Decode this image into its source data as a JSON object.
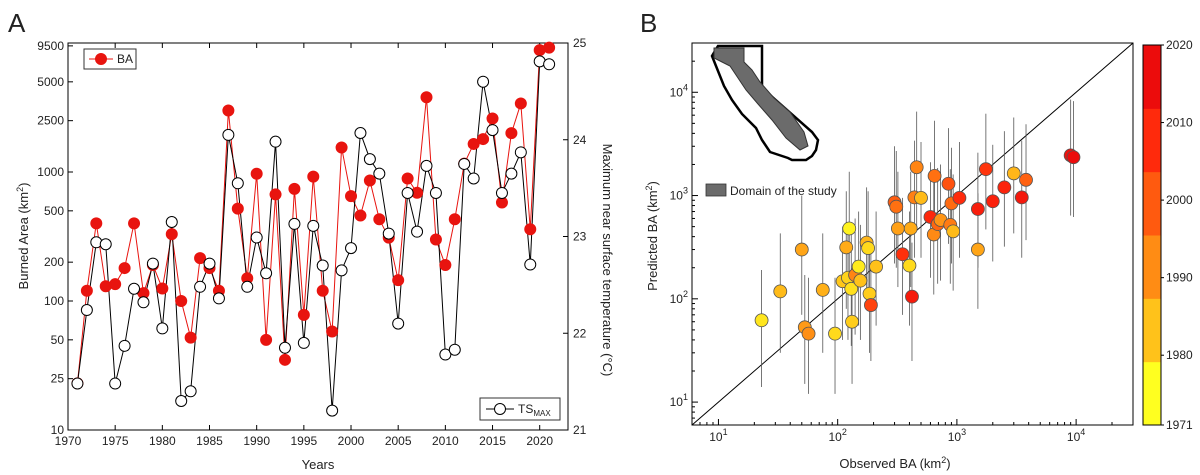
{
  "panel_a": {
    "letter": "A",
    "xlabel": "Years",
    "ylabel_left": "Burned Area (km",
    "ylabel_left_sup": "2",
    "ylabel_left_end": ")",
    "ylabel_right": "Maximum near surface temperature (°C)",
    "legend_ba": "BA",
    "legend_ts": "TS",
    "legend_ts_sub": "MAX",
    "ba_color": "#e8140f",
    "ts_color": "#000000"
  },
  "panel_b": {
    "letter": "B",
    "xlabel": "Observed BA (km",
    "xlabel_sup": "2",
    "xlabel_end": ")",
    "ylabel": "Predicted BA (km",
    "ylabel_sup": "2",
    "ylabel_end": ")",
    "map_legend": "Domain of the study",
    "colorbar_colors": [
      "#ffff20",
      "#ffc21a",
      "#ff8c14",
      "#ff5a0f",
      "#ff2a0c",
      "#ec0c0c"
    ]
  },
  "chart_data": [
    {
      "type": "line",
      "xlim": [
        1970,
        2023
      ],
      "xticks": [
        1970,
        1975,
        1980,
        1985,
        1990,
        1995,
        2000,
        2005,
        2010,
        2015,
        2020
      ],
      "ylim_left": [
        10,
        10000
      ],
      "yscale_left": "log",
      "yticks_left": [
        10,
        25,
        50,
        100,
        200,
        500,
        1000,
        2500,
        5000,
        9500
      ],
      "ylim_right": [
        21,
        25
      ],
      "yticks_right": [
        21,
        22,
        23,
        24,
        25
      ],
      "legend": [
        "top-left",
        "bottom-right"
      ],
      "x": [
        1971,
        1972,
        1973,
        1974,
        1975,
        1976,
        1977,
        1978,
        1979,
        1980,
        1981,
        1982,
        1983,
        1984,
        1985,
        1986,
        1987,
        1988,
        1989,
        1990,
        1991,
        1992,
        1993,
        1994,
        1995,
        1996,
        1997,
        1998,
        1999,
        2000,
        2001,
        2002,
        2003,
        2004,
        2005,
        2006,
        2007,
        2008,
        2009,
        2010,
        2011,
        2012,
        2013,
        2014,
        2015,
        2016,
        2017,
        2018,
        2019,
        2020,
        2021
      ],
      "series": [
        {
          "name": "BA",
          "axis": "left",
          "values": [
            23,
            120,
            400,
            130,
            135,
            180,
            400,
            115,
            190,
            125,
            330,
            100,
            52,
            215,
            180,
            120,
            3000,
            520,
            150,
            970,
            50,
            670,
            35,
            740,
            78,
            920,
            120,
            58,
            1550,
            650,
            460,
            860,
            430,
            310,
            145,
            890,
            690,
            3800,
            300,
            190,
            430,
            1160,
            1650,
            1800,
            2600,
            580,
            2000,
            3400,
            360,
            8800,
            9200
          ]
        },
        {
          "name": "TS",
          "axis": "right",
          "values": [
            21.48,
            22.24,
            22.94,
            22.92,
            21.48,
            21.87,
            22.46,
            22.32,
            22.72,
            22.05,
            23.15,
            21.3,
            21.4,
            22.48,
            22.72,
            22.36,
            24.05,
            23.55,
            22.48,
            22.99,
            22.62,
            23.98,
            21.85,
            23.13,
            21.9,
            23.11,
            22.7,
            21.2,
            22.65,
            22.88,
            24.07,
            23.8,
            23.65,
            23.03,
            22.1,
            23.45,
            23.05,
            23.73,
            23.45,
            21.78,
            21.83,
            23.75,
            23.6,
            24.6,
            24.1,
            23.45,
            23.65,
            23.87,
            22.71,
            24.81,
            24.78
          ]
        }
      ]
    },
    {
      "type": "scatter",
      "xscale": "log",
      "yscale": "log",
      "xlim": [
        6,
        30000
      ],
      "ylim": [
        6,
        30000
      ],
      "xticks": [
        10,
        100,
        1000,
        10000
      ],
      "yticks": [
        10,
        100,
        1000,
        10000
      ],
      "one_to_one_line": true,
      "colorbar": {
        "range": [
          1971,
          2020
        ],
        "ticks": [
          1971,
          1980,
          1990,
          2000,
          2010,
          2020
        ]
      },
      "points": [
        {
          "x": 23,
          "y": 62,
          "lo": 14,
          "hi": 190,
          "year": 1975
        },
        {
          "x": 33,
          "y": 118,
          "lo": 30,
          "hi": 430,
          "year": 1982
        },
        {
          "x": 50,
          "y": 300,
          "lo": 70,
          "hi": 1000,
          "year": 1986
        },
        {
          "x": 53,
          "y": 53,
          "lo": 15,
          "hi": 170,
          "year": 1988
        },
        {
          "x": 57,
          "y": 46,
          "lo": 12,
          "hi": 160,
          "year": 1990
        },
        {
          "x": 75,
          "y": 122,
          "lo": 30,
          "hi": 430,
          "year": 1984
        },
        {
          "x": 95,
          "y": 46,
          "lo": 12,
          "hi": 160,
          "year": 1977
        },
        {
          "x": 110,
          "y": 148,
          "lo": 40,
          "hi": 500,
          "year": 1980
        },
        {
          "x": 118,
          "y": 315,
          "lo": 80,
          "hi": 1100,
          "year": 1985
        },
        {
          "x": 122,
          "y": 160,
          "lo": 40,
          "hi": 550,
          "year": 1978
        },
        {
          "x": 125,
          "y": 480,
          "lo": 130,
          "hi": 1700,
          "year": 1973
        },
        {
          "x": 130,
          "y": 125,
          "lo": 35,
          "hi": 450,
          "year": 1976
        },
        {
          "x": 132,
          "y": 60,
          "lo": 15,
          "hi": 200,
          "year": 1979
        },
        {
          "x": 140,
          "y": 170,
          "lo": 45,
          "hi": 600,
          "year": 1992
        },
        {
          "x": 150,
          "y": 205,
          "lo": 55,
          "hi": 700,
          "year": 1974
        },
        {
          "x": 155,
          "y": 150,
          "lo": 40,
          "hi": 520,
          "year": 1981
        },
        {
          "x": 175,
          "y": 350,
          "lo": 90,
          "hi": 1200,
          "year": 1983
        },
        {
          "x": 180,
          "y": 310,
          "lo": 80,
          "hi": 1100,
          "year": 1977
        },
        {
          "x": 185,
          "y": 112,
          "lo": 30,
          "hi": 400,
          "year": 1979
        },
        {
          "x": 190,
          "y": 87,
          "lo": 25,
          "hi": 300,
          "year": 2005
        },
        {
          "x": 210,
          "y": 205,
          "lo": 55,
          "hi": 700,
          "year": 1981
        },
        {
          "x": 300,
          "y": 860,
          "lo": 220,
          "hi": 3000,
          "year": 2000
        },
        {
          "x": 310,
          "y": 780,
          "lo": 200,
          "hi": 2700,
          "year": 1996
        },
        {
          "x": 320,
          "y": 480,
          "lo": 130,
          "hi": 1700,
          "year": 1987
        },
        {
          "x": 350,
          "y": 270,
          "lo": 70,
          "hi": 950,
          "year": 2009
        },
        {
          "x": 400,
          "y": 210,
          "lo": 55,
          "hi": 700,
          "year": 1977
        },
        {
          "x": 410,
          "y": 480,
          "lo": 130,
          "hi": 1700,
          "year": 1985
        },
        {
          "x": 420,
          "y": 105,
          "lo": 25,
          "hi": 350,
          "year": 2015
        },
        {
          "x": 440,
          "y": 960,
          "lo": 250,
          "hi": 3400,
          "year": 1993
        },
        {
          "x": 460,
          "y": 1880,
          "lo": 500,
          "hi": 6500,
          "year": 1992
        },
        {
          "x": 500,
          "y": 950,
          "lo": 250,
          "hi": 3300,
          "year": 1982
        },
        {
          "x": 600,
          "y": 620,
          "lo": 160,
          "hi": 2100,
          "year": 2011
        },
        {
          "x": 640,
          "y": 420,
          "lo": 110,
          "hi": 1500,
          "year": 1991
        },
        {
          "x": 650,
          "y": 1550,
          "lo": 400,
          "hi": 5300,
          "year": 1996
        },
        {
          "x": 690,
          "y": 530,
          "lo": 140,
          "hi": 1850,
          "year": 1998
        },
        {
          "x": 730,
          "y": 580,
          "lo": 150,
          "hi": 2000,
          "year": 1989
        },
        {
          "x": 850,
          "y": 1300,
          "lo": 340,
          "hi": 4500,
          "year": 2002
        },
        {
          "x": 880,
          "y": 520,
          "lo": 140,
          "hi": 1800,
          "year": 1994
        },
        {
          "x": 900,
          "y": 840,
          "lo": 220,
          "hi": 2900,
          "year": 1997
        },
        {
          "x": 930,
          "y": 450,
          "lo": 120,
          "hi": 1600,
          "year": 1982
        },
        {
          "x": 1050,
          "y": 950,
          "lo": 250,
          "hi": 3300,
          "year": 2010
        },
        {
          "x": 1500,
          "y": 300,
          "lo": 80,
          "hi": 1050,
          "year": 1986
        },
        {
          "x": 1500,
          "y": 740,
          "lo": 200,
          "hi": 2600,
          "year": 2014
        },
        {
          "x": 1750,
          "y": 1800,
          "lo": 470,
          "hi": 6200,
          "year": 2008
        },
        {
          "x": 2000,
          "y": 880,
          "lo": 230,
          "hi": 3100,
          "year": 2013
        },
        {
          "x": 2500,
          "y": 1200,
          "lo": 320,
          "hi": 4200,
          "year": 2012
        },
        {
          "x": 3000,
          "y": 1640,
          "lo": 430,
          "hi": 5700,
          "year": 1983
        },
        {
          "x": 3500,
          "y": 960,
          "lo": 250,
          "hi": 3400,
          "year": 2016
        },
        {
          "x": 3800,
          "y": 1420,
          "lo": 370,
          "hi": 4900,
          "year": 1999
        },
        {
          "x": 9000,
          "y": 2450,
          "lo": 640,
          "hi": 8500,
          "year": 2018
        },
        {
          "x": 9500,
          "y": 2350,
          "lo": 620,
          "hi": 8200,
          "year": 2020
        }
      ]
    }
  ]
}
